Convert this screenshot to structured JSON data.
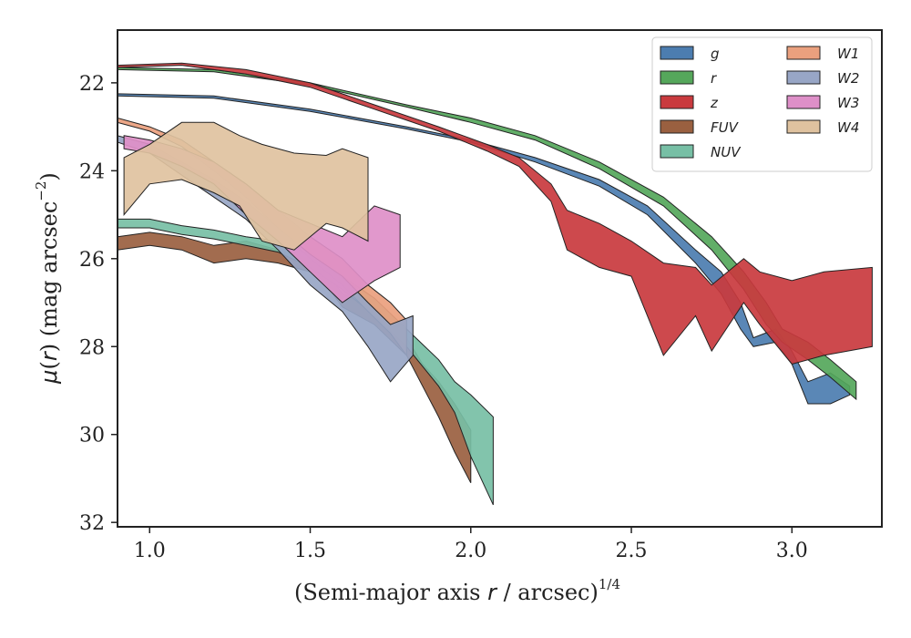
{
  "chart_data": {
    "type": "area",
    "xlabel": "(Semi-major axis r / arcsec)^(1/4)",
    "ylabel": "μ(r) (mag arcsec^-2)",
    "xlim": [
      0.9,
      3.28
    ],
    "ylim": [
      32.1,
      20.8
    ],
    "y_inverted": true,
    "x_ticks": [
      1.0,
      1.5,
      2.0,
      2.5,
      3.0
    ],
    "x_tick_labels": [
      "1.0",
      "1.5",
      "2.0",
      "2.5",
      "3.0"
    ],
    "y_ticks": [
      22,
      24,
      26,
      28,
      30,
      32
    ],
    "y_tick_labels": [
      "22",
      "24",
      "26",
      "28",
      "30",
      "32"
    ],
    "legend": {
      "position": "top-right",
      "columns": 2
    },
    "series": [
      {
        "name": "g",
        "color": "#4c7db0",
        "upper": [
          [
            0.9,
            22.25
          ],
          [
            1.2,
            22.3
          ],
          [
            1.5,
            22.6
          ],
          [
            1.8,
            23.0
          ],
          [
            2.0,
            23.3
          ],
          [
            2.2,
            23.7
          ],
          [
            2.4,
            24.2
          ],
          [
            2.55,
            24.8
          ],
          [
            2.7,
            25.8
          ],
          [
            2.78,
            26.3
          ],
          [
            2.84,
            27.0
          ],
          [
            2.88,
            27.8
          ],
          [
            2.95,
            27.6
          ],
          [
            3.0,
            28.1
          ],
          [
            3.05,
            28.8
          ],
          [
            3.12,
            28.6
          ],
          [
            3.18,
            28.9
          ]
        ],
        "lower": [
          [
            0.9,
            22.3
          ],
          [
            1.2,
            22.35
          ],
          [
            1.5,
            22.65
          ],
          [
            1.8,
            23.05
          ],
          [
            2.0,
            23.35
          ],
          [
            2.2,
            23.8
          ],
          [
            2.4,
            24.35
          ],
          [
            2.55,
            25.0
          ],
          [
            2.7,
            26.1
          ],
          [
            2.78,
            26.8
          ],
          [
            2.84,
            27.6
          ],
          [
            2.88,
            28.0
          ],
          [
            2.95,
            27.9
          ],
          [
            3.0,
            28.4
          ],
          [
            3.05,
            29.3
          ],
          [
            3.12,
            29.3
          ],
          [
            3.18,
            29.1
          ]
        ]
      },
      {
        "name": "r",
        "color": "#55a75b",
        "upper": [
          [
            0.9,
            21.65
          ],
          [
            1.2,
            21.7
          ],
          [
            1.5,
            22.0
          ],
          [
            1.8,
            22.5
          ],
          [
            2.0,
            22.8
          ],
          [
            2.2,
            23.2
          ],
          [
            2.4,
            23.8
          ],
          [
            2.6,
            24.6
          ],
          [
            2.75,
            25.5
          ],
          [
            2.85,
            26.3
          ],
          [
            2.92,
            27.0
          ],
          [
            2.97,
            27.6
          ],
          [
            3.05,
            27.9
          ],
          [
            3.12,
            28.3
          ],
          [
            3.2,
            28.8
          ]
        ],
        "lower": [
          [
            0.9,
            21.7
          ],
          [
            1.2,
            21.75
          ],
          [
            1.5,
            22.05
          ],
          [
            1.8,
            22.55
          ],
          [
            2.0,
            22.9
          ],
          [
            2.2,
            23.3
          ],
          [
            2.4,
            23.95
          ],
          [
            2.6,
            24.8
          ],
          [
            2.75,
            25.8
          ],
          [
            2.85,
            26.7
          ],
          [
            2.92,
            27.5
          ],
          [
            2.97,
            27.9
          ],
          [
            3.05,
            28.3
          ],
          [
            3.12,
            28.7
          ],
          [
            3.2,
            29.2
          ]
        ]
      },
      {
        "name": "z",
        "color": "#c93a3e",
        "upper": [
          [
            0.9,
            21.6
          ],
          [
            1.1,
            21.55
          ],
          [
            1.3,
            21.7
          ],
          [
            1.5,
            22.0
          ],
          [
            1.7,
            22.5
          ],
          [
            1.9,
            23.0
          ],
          [
            2.05,
            23.4
          ],
          [
            2.15,
            23.7
          ],
          [
            2.25,
            24.3
          ],
          [
            2.3,
            24.9
          ],
          [
            2.4,
            25.2
          ],
          [
            2.5,
            25.6
          ],
          [
            2.6,
            26.1
          ],
          [
            2.7,
            26.2
          ],
          [
            2.75,
            26.6
          ],
          [
            2.85,
            26.0
          ],
          [
            2.9,
            26.3
          ],
          [
            3.0,
            26.5
          ],
          [
            3.1,
            26.3
          ],
          [
            3.25,
            26.2
          ]
        ],
        "lower": [
          [
            0.9,
            21.65
          ],
          [
            1.1,
            21.6
          ],
          [
            1.3,
            21.8
          ],
          [
            1.5,
            22.1
          ],
          [
            1.7,
            22.6
          ],
          [
            1.9,
            23.1
          ],
          [
            2.05,
            23.55
          ],
          [
            2.15,
            23.9
          ],
          [
            2.25,
            24.7
          ],
          [
            2.3,
            25.8
          ],
          [
            2.4,
            26.2
          ],
          [
            2.5,
            26.4
          ],
          [
            2.6,
            28.2
          ],
          [
            2.7,
            27.3
          ],
          [
            2.75,
            28.1
          ],
          [
            2.85,
            27.0
          ],
          [
            2.9,
            27.5
          ],
          [
            3.0,
            28.4
          ],
          [
            3.1,
            28.2
          ],
          [
            3.25,
            28.0
          ]
        ]
      },
      {
        "name": "FUV",
        "color": "#9a6040",
        "upper": [
          [
            0.9,
            25.5
          ],
          [
            1.0,
            25.4
          ],
          [
            1.1,
            25.5
          ],
          [
            1.2,
            25.7
          ],
          [
            1.3,
            25.6
          ],
          [
            1.4,
            25.8
          ],
          [
            1.5,
            26.0
          ],
          [
            1.55,
            26.3
          ],
          [
            1.6,
            26.8
          ],
          [
            1.7,
            27.1
          ],
          [
            1.8,
            27.8
          ],
          [
            1.85,
            28.4
          ],
          [
            1.9,
            28.8
          ],
          [
            1.95,
            29.3
          ],
          [
            2.0,
            29.9
          ]
        ],
        "lower": [
          [
            0.9,
            25.8
          ],
          [
            1.0,
            25.7
          ],
          [
            1.1,
            25.8
          ],
          [
            1.2,
            26.1
          ],
          [
            1.3,
            26.0
          ],
          [
            1.4,
            26.1
          ],
          [
            1.5,
            26.3
          ],
          [
            1.55,
            26.6
          ],
          [
            1.6,
            27.1
          ],
          [
            1.7,
            27.5
          ],
          [
            1.8,
            28.2
          ],
          [
            1.85,
            28.9
          ],
          [
            1.9,
            29.6
          ],
          [
            1.95,
            30.4
          ],
          [
            2.0,
            31.1
          ]
        ]
      },
      {
        "name": "NUV",
        "color": "#77bfa5",
        "upper": [
          [
            0.9,
            25.1
          ],
          [
            1.0,
            25.1
          ],
          [
            1.1,
            25.25
          ],
          [
            1.2,
            25.35
          ],
          [
            1.3,
            25.5
          ],
          [
            1.4,
            25.6
          ],
          [
            1.5,
            25.9
          ],
          [
            1.6,
            26.4
          ],
          [
            1.7,
            26.9
          ],
          [
            1.8,
            27.6
          ],
          [
            1.9,
            28.3
          ],
          [
            1.95,
            28.8
          ],
          [
            2.0,
            29.1
          ],
          [
            2.07,
            29.6
          ]
        ],
        "lower": [
          [
            0.9,
            25.3
          ],
          [
            1.0,
            25.3
          ],
          [
            1.1,
            25.45
          ],
          [
            1.2,
            25.55
          ],
          [
            1.3,
            25.7
          ],
          [
            1.4,
            25.85
          ],
          [
            1.5,
            26.2
          ],
          [
            1.6,
            26.7
          ],
          [
            1.7,
            27.3
          ],
          [
            1.8,
            28.0
          ],
          [
            1.9,
            28.9
          ],
          [
            1.95,
            29.5
          ],
          [
            2.0,
            30.5
          ],
          [
            2.07,
            31.6
          ]
        ]
      },
      {
        "name": "W1",
        "color": "#eaa07e",
        "upper": [
          [
            0.9,
            22.8
          ],
          [
            1.0,
            23.0
          ],
          [
            1.1,
            23.3
          ],
          [
            1.2,
            23.8
          ],
          [
            1.3,
            24.3
          ],
          [
            1.4,
            24.9
          ],
          [
            1.5,
            25.5
          ],
          [
            1.6,
            26.0
          ],
          [
            1.68,
            26.6
          ],
          [
            1.75,
            27.0
          ],
          [
            1.8,
            27.4
          ]
        ],
        "lower": [
          [
            0.9,
            22.9
          ],
          [
            1.0,
            23.1
          ],
          [
            1.1,
            23.45
          ],
          [
            1.2,
            24.0
          ],
          [
            1.3,
            24.6
          ],
          [
            1.4,
            25.3
          ],
          [
            1.5,
            26.0
          ],
          [
            1.6,
            26.6
          ],
          [
            1.68,
            27.2
          ],
          [
            1.75,
            27.7
          ],
          [
            1.8,
            28.2
          ]
        ]
      },
      {
        "name": "W2",
        "color": "#98a6c6",
        "upper": [
          [
            0.9,
            23.2
          ],
          [
            1.0,
            23.4
          ],
          [
            1.1,
            23.8
          ],
          [
            1.2,
            24.2
          ],
          [
            1.3,
            24.7
          ],
          [
            1.4,
            25.3
          ],
          [
            1.5,
            25.9
          ],
          [
            1.6,
            26.4
          ],
          [
            1.68,
            27.0
          ],
          [
            1.75,
            27.5
          ],
          [
            1.82,
            27.3
          ]
        ],
        "lower": [
          [
            0.9,
            23.35
          ],
          [
            1.0,
            23.6
          ],
          [
            1.1,
            24.1
          ],
          [
            1.2,
            24.6
          ],
          [
            1.3,
            25.1
          ],
          [
            1.4,
            25.8
          ],
          [
            1.5,
            26.6
          ],
          [
            1.6,
            27.2
          ],
          [
            1.68,
            28.0
          ],
          [
            1.75,
            28.8
          ],
          [
            1.82,
            28.2
          ]
        ]
      },
      {
        "name": "W3",
        "color": "#de8fc8",
        "upper": [
          [
            0.92,
            23.2
          ],
          [
            1.0,
            23.3
          ],
          [
            1.1,
            23.5
          ],
          [
            1.2,
            23.8
          ],
          [
            1.3,
            24.3
          ],
          [
            1.4,
            24.9
          ],
          [
            1.5,
            25.2
          ],
          [
            1.6,
            25.5
          ],
          [
            1.7,
            24.8
          ],
          [
            1.78,
            25.0
          ]
        ],
        "lower": [
          [
            0.92,
            23.5
          ],
          [
            1.0,
            23.6
          ],
          [
            1.1,
            23.9
          ],
          [
            1.2,
            24.3
          ],
          [
            1.3,
            25.0
          ],
          [
            1.4,
            25.6
          ],
          [
            1.5,
            26.3
          ],
          [
            1.6,
            27.0
          ],
          [
            1.7,
            26.5
          ],
          [
            1.78,
            26.2
          ]
        ]
      },
      {
        "name": "W4",
        "color": "#dfc29f",
        "upper": [
          [
            0.92,
            23.7
          ],
          [
            1.0,
            23.4
          ],
          [
            1.1,
            22.9
          ],
          [
            1.2,
            22.9
          ],
          [
            1.28,
            23.2
          ],
          [
            1.35,
            23.4
          ],
          [
            1.45,
            23.6
          ],
          [
            1.55,
            23.65
          ],
          [
            1.6,
            23.5
          ],
          [
            1.68,
            23.7
          ]
        ],
        "lower": [
          [
            0.92,
            25.0
          ],
          [
            1.0,
            24.3
          ],
          [
            1.1,
            24.2
          ],
          [
            1.2,
            24.5
          ],
          [
            1.28,
            24.8
          ],
          [
            1.35,
            25.6
          ],
          [
            1.45,
            25.8
          ],
          [
            1.55,
            25.2
          ],
          [
            1.6,
            25.3
          ],
          [
            1.68,
            25.6
          ]
        ]
      }
    ]
  }
}
